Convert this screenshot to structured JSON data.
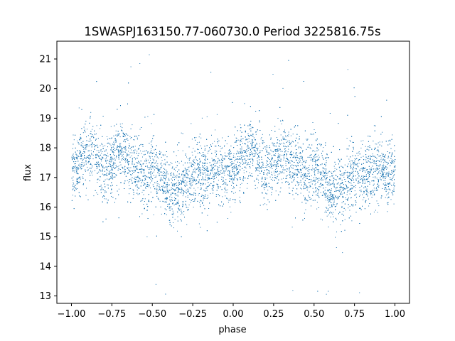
{
  "chart_data": {
    "type": "scatter",
    "title": "1SWASPJ163150.77-060730.0 Period 3225816.75s",
    "xlabel": "phase",
    "ylabel": "flux",
    "xlim": [
      -1.09,
      1.09
    ],
    "ylim": [
      12.75,
      21.6
    ],
    "xticks": [
      -1.0,
      -0.75,
      -0.5,
      -0.25,
      0.0,
      0.25,
      0.5,
      0.75,
      1.0
    ],
    "xtick_labels": [
      "−1.00",
      "−0.75",
      "−0.50",
      "−0.25",
      "0.00",
      "0.25",
      "0.50",
      "0.75",
      "1.00"
    ],
    "yticks": [
      13,
      14,
      15,
      16,
      17,
      18,
      19,
      20,
      21
    ],
    "ytick_labels": [
      "13",
      "14",
      "15",
      "16",
      "17",
      "18",
      "19",
      "20",
      "21"
    ],
    "grid": false,
    "legend": "none",
    "marker_color": "#1f77b4",
    "point_count": 9000,
    "series": [
      {
        "x_range": [
          -1.0,
          1.0
        ],
        "periodic": true,
        "trend": {
          "phase": [
            0.0,
            0.05,
            0.1,
            0.15,
            0.2,
            0.25,
            0.3,
            0.35,
            0.4,
            0.45,
            0.5,
            0.55,
            0.6,
            0.65,
            0.7,
            0.75,
            0.8,
            0.85,
            0.9,
            0.95,
            1.0
          ],
          "flux": [
            17.3,
            17.6,
            17.9,
            17.7,
            17.2,
            17.5,
            17.9,
            17.6,
            17.4,
            17.0,
            17.4,
            17.0,
            16.5,
            16.6,
            16.8,
            17.1,
            17.2,
            17.0,
            17.3,
            17.1,
            17.3
          ]
        },
        "spread_sd": 0.55
      }
    ]
  }
}
